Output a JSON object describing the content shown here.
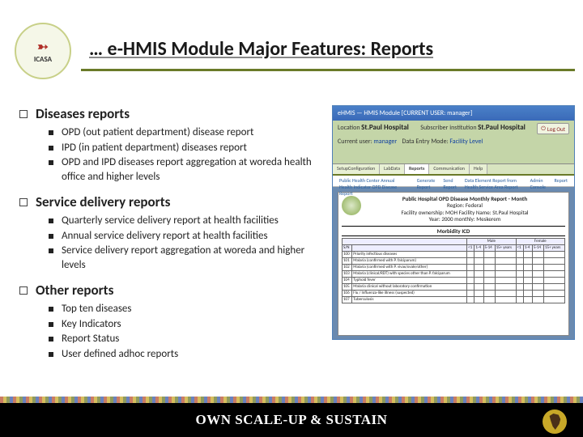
{
  "logo": {
    "name": "ICASA",
    "ribbon": "➳"
  },
  "title": "… e-HMIS Module Major Features: Reports",
  "sections": [
    {
      "heading": "Diseases reports",
      "items": [
        "OPD (out patient department) disease report",
        "IPD (in patient department) diseases report",
        "OPD and IPD diseases report aggregation at woreda health office and higher levels"
      ]
    },
    {
      "heading": "Service delivery reports",
      "items": [
        "Quarterly service delivery report at health facilities",
        "Annual service delivery report at health facilities",
        "Service delivery report aggregation at woreda and higher levels"
      ]
    },
    {
      "heading": "Other reports",
      "items": [
        "Top ten diseases",
        "Key Indicators",
        " Report Status",
        "User defined adhoc reports"
      ]
    }
  ],
  "screenshot": {
    "titlebar": "eHMIS — HMIS Module [CURRENT USER: manager]",
    "location_label": "Location",
    "location_value": "St.Paul Hospital",
    "subscriber_label": "Subscriber institution",
    "subscriber_value": "St.Paul Hospital",
    "entry_label": "Current user:",
    "entry_value": "manager",
    "mode_label": "Data Entry Mode:",
    "mode_value": "Facility Level",
    "logout": "Log Out",
    "tabs": [
      "SetupConfiguration",
      "LabData",
      "Reports",
      "Communication",
      "Help"
    ],
    "subtabs": [
      "Public Health Center Annual Health Indicator OPD Disease Report",
      "Generate Report",
      "Send Report",
      "Data Element Report from Health Service Area Report",
      "Admin Console",
      "Report"
    ],
    "report": {
      "title": "Public Hospital OPD Disease Monthly Report - Month",
      "region": "Region: Federal",
      "ownership": "Facility ownership: MOH  Facility Name: St.Paul Hospital",
      "year": "Year: 2000   monthly: Meskerem",
      "morbidity": "Morbidity ICD",
      "col_groups": [
        "",
        "Male",
        "Female"
      ],
      "age_cols": [
        "",
        "<1",
        "1-4",
        "5-14",
        "15+ years",
        "<1",
        "1-4",
        "5-14",
        "15+ years"
      ],
      "rows": [
        {
          "sn": "100",
          "label": "Priority infectious diseases"
        },
        {
          "sn": "101",
          "label": "Malaria (confirmed with P. falciparum)"
        },
        {
          "sn": "102",
          "label": "Malaria (confirmed with P. vivax/ovale/other)"
        },
        {
          "sn": "103",
          "label": "Malaria (clinical/RDT) with species other than P. falciparum"
        },
        {
          "sn": "104",
          "label": "Typhoid fever"
        },
        {
          "sn": "105",
          "label": "Malaria clinical without laboratory confirmation"
        },
        {
          "sn": "106",
          "label": "Flu / Influenza-like illness (suspected)"
        },
        {
          "sn": "107",
          "label": "Tuberculosis"
        }
      ]
    }
  },
  "footer": "OWN SCALE-UP & SUSTAIN",
  "colors": {
    "olive": "#6a7a28",
    "olive_light": "#c4d5a8",
    "blue_panel": "#7aa0d0",
    "header_blue": "#3a6ab8",
    "black": "#000000"
  }
}
